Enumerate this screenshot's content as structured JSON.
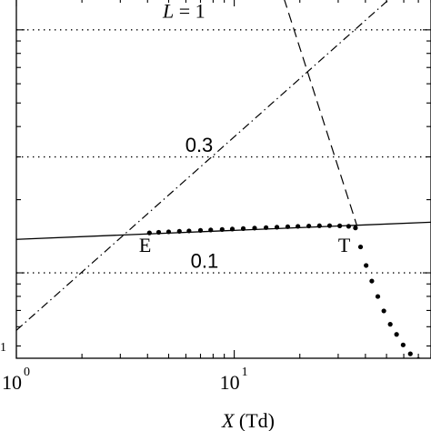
{
  "chart_data": {
    "type": "line",
    "title": "",
    "xscale": "log",
    "yscale": "log",
    "xlim": [
      1,
      80
    ],
    "ylim": [
      0.0445,
      1.35
    ],
    "xlabel": {
      "var": "X",
      "unit": " (Td)"
    },
    "xticks": [
      {
        "value": 1,
        "base": "10",
        "exp": "0"
      },
      {
        "value": 10,
        "base": "10",
        "exp": "1"
      }
    ],
    "ytick_partial_label": "1",
    "grid": "none",
    "legend": "none",
    "series": [
      {
        "style": "dotted-horizontal",
        "points": [
          [
            1,
            1
          ],
          [
            80,
            1
          ]
        ]
      },
      {
        "style": "dotted-horizontal",
        "points": [
          [
            1,
            0.3
          ],
          [
            80,
            0.3
          ]
        ]
      },
      {
        "style": "dotted-horizontal",
        "points": [
          [
            1,
            0.1
          ],
          [
            80,
            0.1
          ]
        ]
      },
      {
        "style": "solid",
        "points": [
          [
            1,
            0.1373
          ],
          [
            80,
            0.1616
          ]
        ]
      },
      {
        "style": "dash-dot",
        "points": [
          [
            1,
            0.058
          ],
          [
            80,
            1.9
          ]
        ]
      },
      {
        "style": "dashed",
        "points": [
          [
            16.9,
            1.35
          ],
          [
            36.6,
            0.1559
          ]
        ]
      },
      {
        "style": "dots",
        "points": [
          [
            4.08,
            0.146
          ],
          [
            4.5,
            0.1468
          ],
          [
            5.0,
            0.1475
          ],
          [
            5.6,
            0.1482
          ],
          [
            6.2,
            0.1488
          ],
          [
            7.0,
            0.1495
          ],
          [
            7.8,
            0.1501
          ],
          [
            8.8,
            0.1508
          ],
          [
            9.8,
            0.1514
          ],
          [
            11.0,
            0.1521
          ],
          [
            12.4,
            0.1528
          ],
          [
            14.0,
            0.1535
          ],
          [
            15.7,
            0.1541
          ],
          [
            17.6,
            0.1548
          ],
          [
            19.6,
            0.1553
          ],
          [
            22.0,
            0.1558
          ],
          [
            24.6,
            0.1562
          ],
          [
            27.4,
            0.1563
          ],
          [
            30.5,
            0.1561
          ],
          [
            33.5,
            0.1554
          ],
          [
            36.0,
            0.153
          ],
          [
            38.0,
            0.1278
          ],
          [
            40.3,
            0.1072
          ],
          [
            42.8,
            0.0925
          ],
          [
            45.6,
            0.0799
          ],
          [
            48.6,
            0.0697
          ],
          [
            52.0,
            0.0614
          ],
          [
            55.6,
            0.0558
          ],
          [
            59.6,
            0.0505
          ],
          [
            64.3,
            0.0464
          ],
          [
            70.0,
            0.044
          ]
        ]
      }
    ],
    "annotations": [
      {
        "text": "L",
        "suffix": " = 1",
        "x": 6.9,
        "y": 1.12
      },
      {
        "text": "0.3",
        "x": 6.9,
        "y": 0.315
      },
      {
        "text": "E",
        "x": 3.9,
        "y": 0.122
      },
      {
        "text": "T",
        "x": 32.0,
        "y": 0.122
      },
      {
        "text": "0.1",
        "x": 7.3,
        "y": 0.105
      }
    ]
  }
}
